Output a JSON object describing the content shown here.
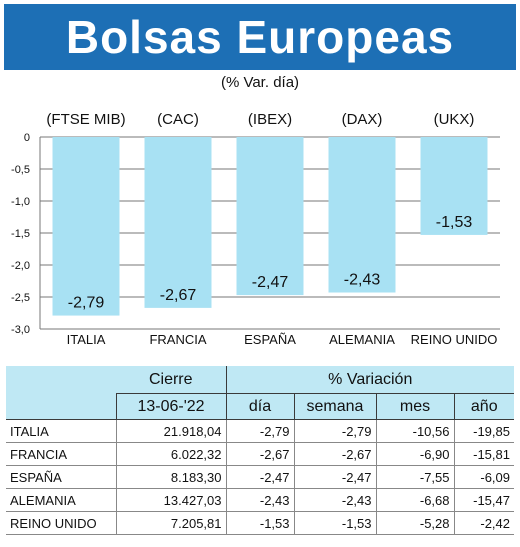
{
  "title": "Bolsas Europeas",
  "subtitle": "(% Var. día)",
  "chart_data": {
    "type": "bar",
    "categories": [
      "ITALIA",
      "FRANCIA",
      "ESPAÑA",
      "ALEMANIA",
      "REINO UNIDO"
    ],
    "indices": [
      "(FTSE MIB)",
      "(CAC)",
      "(IBEX)",
      "(DAX)",
      "(UKX)"
    ],
    "values": [
      -2.79,
      -2.67,
      -2.47,
      -2.43,
      -1.53
    ],
    "value_labels": [
      "-2,79",
      "-2,67",
      "-2,47",
      "-2,43",
      "-1,53"
    ],
    "ylim": [
      -3.0,
      0
    ],
    "yticks": [
      "0",
      "-0,5",
      "-1,0",
      "-1,5",
      "-2,0",
      "-2,5",
      "-3,0"
    ],
    "grid": true,
    "bar_color": "#a8e1f3"
  },
  "table": {
    "header_close": "Cierre",
    "header_variation": "% Variación",
    "date": "13-06-'22",
    "columns": [
      "día",
      "semana",
      "mes",
      "año"
    ],
    "rows": [
      {
        "country": "ITALIA",
        "close": "21.918,04",
        "day": "-2,79",
        "week": "-2,79",
        "month": "-10,56",
        "year": "-19,85"
      },
      {
        "country": "FRANCIA",
        "close": "6.022,32",
        "day": "-2,67",
        "week": "-2,67",
        "month": "-6,90",
        "year": "-15,81"
      },
      {
        "country": "ESPAÑA",
        "close": "8.183,30",
        "day": "-2,47",
        "week": "-2,47",
        "month": "-7,55",
        "year": "-6,09"
      },
      {
        "country": "ALEMANIA",
        "close": "13.427,03",
        "day": "-2,43",
        "week": "-2,43",
        "month": "-6,68",
        "year": "-15,47"
      },
      {
        "country": "REINO UNIDO",
        "close": "7.205,81",
        "day": "-1,53",
        "week": "-1,53",
        "month": "-5,28",
        "year": "-2,42"
      }
    ]
  },
  "colors": {
    "banner": "#1d6fb5",
    "table_header": "#bfe8f4"
  }
}
